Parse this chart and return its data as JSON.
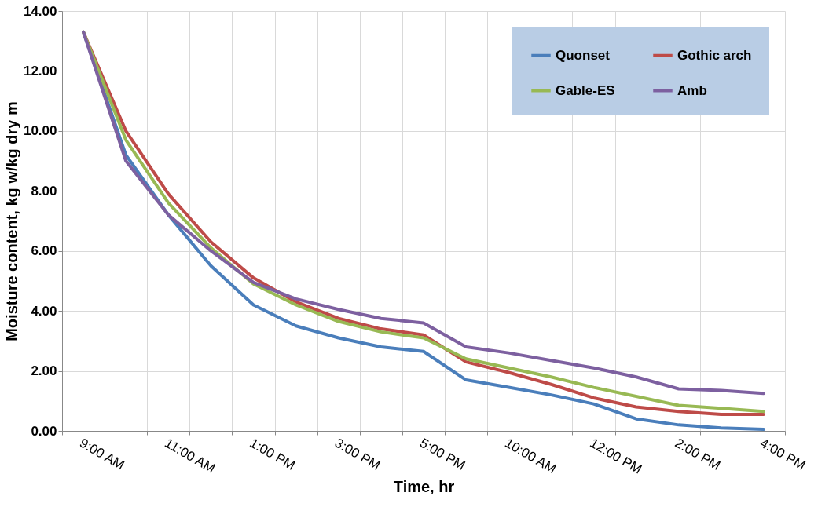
{
  "chart_data": {
    "type": "line",
    "xlabel": "Time, hr",
    "ylabel": "Moisture content, kg w/kg dry m",
    "categories": [
      "9:00 AM",
      null,
      "11:00 AM",
      null,
      "1:00 PM",
      null,
      "3:00 PM",
      null,
      "5:00 PM",
      null,
      "10:00 AM",
      null,
      "12:00 PM",
      null,
      "2:00 PM",
      null,
      "4:00 PM"
    ],
    "series": [
      {
        "name": "Quonset",
        "color": "#4a7ebb",
        "values": [
          13.3,
          9.2,
          7.2,
          5.5,
          4.2,
          3.5,
          3.1,
          2.8,
          2.65,
          1.7,
          1.45,
          1.2,
          0.9,
          0.4,
          0.2,
          0.1,
          0.05
        ]
      },
      {
        "name": "Gothic arch",
        "color": "#be4b48",
        "values": [
          13.3,
          10.0,
          7.9,
          6.3,
          5.1,
          4.3,
          3.75,
          3.4,
          3.2,
          2.3,
          1.95,
          1.55,
          1.1,
          0.8,
          0.65,
          0.55,
          0.55
        ]
      },
      {
        "name": "Gable-ES",
        "color": "#98b954",
        "values": [
          13.3,
          9.7,
          7.6,
          6.1,
          4.9,
          4.2,
          3.65,
          3.3,
          3.1,
          2.4,
          2.1,
          1.8,
          1.45,
          1.15,
          0.85,
          0.75,
          0.65
        ]
      },
      {
        "name": "Amb",
        "color": "#7d60a0",
        "values": [
          13.3,
          9.0,
          7.2,
          6.0,
          4.95,
          4.4,
          4.05,
          3.75,
          3.6,
          2.8,
          2.6,
          2.35,
          2.1,
          1.8,
          1.4,
          1.35,
          1.25
        ]
      }
    ],
    "ylim": [
      0,
      14
    ],
    "yticks": [
      {
        "value": 0,
        "label": "0.00"
      },
      {
        "value": 2,
        "label": "2.00"
      },
      {
        "value": 4,
        "label": "4.00"
      },
      {
        "value": 6,
        "label": "6.00"
      },
      {
        "value": 8,
        "label": "8.00"
      },
      {
        "value": 10,
        "label": "10.00"
      },
      {
        "value": 12,
        "label": "12.00"
      },
      {
        "value": 14,
        "label": "14.00"
      }
    ],
    "grid": true,
    "legend": "top right",
    "marker": "none",
    "line_style": "solid"
  }
}
